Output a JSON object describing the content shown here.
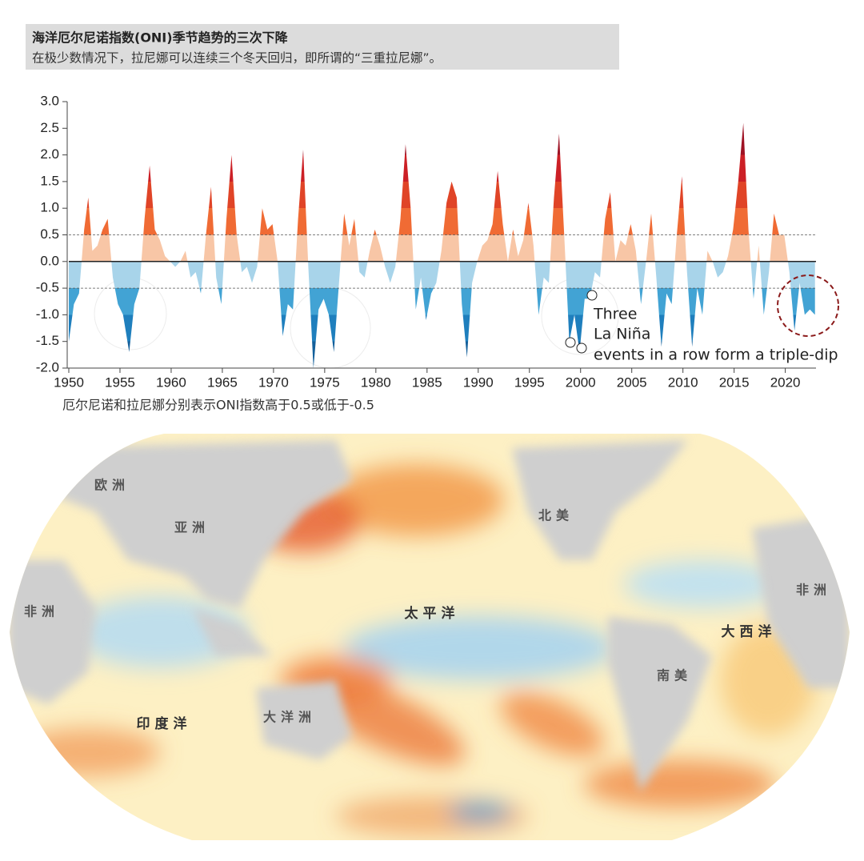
{
  "chart_data": {
    "type": "area",
    "title": "海洋厄尔尼诺指数(ONI)季节趋势的三次下降",
    "subtitle": "在极少数情况下，拉尼娜可以连续三个冬天回归，即所谓的“三重拉尼娜”。",
    "x_axis_label": "厄尔尼诺和拉尼娜分别表示ONI指数高于0.5或低于-0.5",
    "x": [
      1950.0,
      1950.5,
      1951.0,
      1951.5,
      1951.9,
      1952.3,
      1952.8,
      1953.3,
      1953.8,
      1954.3,
      1954.8,
      1955.3,
      1955.9,
      1956.4,
      1956.9,
      1957.4,
      1957.9,
      1958.4,
      1958.9,
      1959.4,
      1959.9,
      1960.4,
      1960.9,
      1961.4,
      1961.9,
      1962.4,
      1962.9,
      1963.4,
      1963.9,
      1964.4,
      1964.9,
      1965.4,
      1965.9,
      1966.4,
      1966.9,
      1967.4,
      1967.9,
      1968.4,
      1968.9,
      1969.4,
      1969.9,
      1970.4,
      1970.9,
      1971.4,
      1971.9,
      1972.4,
      1972.9,
      1973.4,
      1973.9,
      1974.4,
      1974.9,
      1975.4,
      1975.9,
      1976.4,
      1976.9,
      1977.4,
      1977.9,
      1978.4,
      1978.9,
      1979.4,
      1979.9,
      1980.4,
      1980.9,
      1981.4,
      1981.9,
      1982.4,
      1982.9,
      1983.4,
      1983.9,
      1984.4,
      1984.9,
      1985.4,
      1985.9,
      1986.4,
      1986.9,
      1987.4,
      1987.9,
      1988.4,
      1988.9,
      1989.4,
      1989.9,
      1990.4,
      1990.9,
      1991.4,
      1991.9,
      1992.4,
      1992.9,
      1993.4,
      1993.9,
      1994.4,
      1994.9,
      1995.4,
      1995.9,
      1996.4,
      1996.9,
      1997.4,
      1997.9,
      1998.4,
      1998.9,
      1999.4,
      1999.9,
      2000.4,
      2000.9,
      2001.4,
      2001.9,
      2002.4,
      2002.9,
      2003.4,
      2003.9,
      2004.4,
      2004.9,
      2005.4,
      2005.9,
      2006.4,
      2006.9,
      2007.4,
      2007.9,
      2008.4,
      2008.9,
      2009.4,
      2009.9,
      2010.4,
      2010.9,
      2011.4,
      2011.9,
      2012.4,
      2012.9,
      2013.4,
      2013.9,
      2014.4,
      2014.9,
      2015.4,
      2015.9,
      2016.4,
      2016.9,
      2017.4,
      2017.9,
      2018.4,
      2018.9,
      2019.4,
      2019.9,
      2020.4,
      2020.9,
      2021.4,
      2021.9,
      2022.4,
      2022.9
    ],
    "values": [
      -1.5,
      -0.8,
      -0.6,
      0.6,
      1.2,
      0.2,
      0.3,
      0.6,
      0.8,
      -0.3,
      -0.8,
      -1.0,
      -1.7,
      -0.8,
      -0.5,
      0.8,
      1.8,
      0.6,
      0.4,
      0.1,
      0.0,
      -0.1,
      0.0,
      0.2,
      -0.3,
      -0.2,
      -0.6,
      0.5,
      1.4,
      -0.3,
      -0.8,
      0.8,
      2.0,
      0.5,
      -0.2,
      -0.1,
      -0.4,
      -0.1,
      1.0,
      0.6,
      0.7,
      0.0,
      -1.4,
      -0.8,
      -0.9,
      0.8,
      2.1,
      -0.1,
      -2.0,
      -0.9,
      -0.7,
      -1.0,
      -1.7,
      -0.4,
      0.9,
      0.3,
      0.8,
      -0.2,
      -0.3,
      0.2,
      0.6,
      0.3,
      -0.1,
      -0.4,
      -0.1,
      0.8,
      2.2,
      1.0,
      -0.9,
      -0.3,
      -1.1,
      -0.6,
      -0.4,
      0.2,
      1.1,
      1.5,
      1.2,
      -0.8,
      -1.8,
      -0.4,
      0.0,
      0.3,
      0.4,
      0.7,
      1.7,
      0.7,
      0.0,
      0.6,
      0.1,
      0.4,
      1.1,
      0.3,
      -1.0,
      -0.3,
      -0.4,
      1.2,
      2.4,
      0.5,
      -1.5,
      -1.0,
      -1.7,
      -0.7,
      -0.7,
      -0.2,
      -0.3,
      0.8,
      1.3,
      0.0,
      0.4,
      0.3,
      0.7,
      0.2,
      -0.8,
      0.0,
      0.9,
      -0.3,
      -1.6,
      -0.6,
      -0.8,
      0.5,
      1.6,
      -0.2,
      -1.6,
      -0.5,
      -1.0,
      0.2,
      0.0,
      -0.3,
      -0.2,
      0.1,
      0.6,
      1.5,
      2.6,
      0.6,
      -0.7,
      0.3,
      -1.0,
      -0.2,
      0.9,
      0.5,
      0.5,
      -0.2,
      -1.3,
      -0.4,
      -1.0,
      -0.9,
      -1.0
    ],
    "xlim": [
      1950,
      2023
    ],
    "ylim": [
      -2,
      3
    ],
    "xticks": [
      1950,
      1955,
      1960,
      1965,
      1970,
      1975,
      1980,
      1985,
      1990,
      1995,
      2000,
      2005,
      2010,
      2015,
      2020
    ],
    "yticks": [
      {
        "value": 3,
        "label": "3.0"
      },
      2.5,
      {
        "value": 2,
        "label": "2.0"
      },
      1.5,
      {
        "value": 1,
        "label": "1.0"
      },
      0.5,
      {
        "value": 0,
        "label": "0.0"
      },
      -0.5,
      {
        "value": -1,
        "label": "-1.0"
      },
      -1.5,
      {
        "value": -2,
        "label": "-2.0"
      }
    ],
    "reference_lines": [
      0.5,
      -0.5
    ],
    "color_scale": {
      "thresholds": [
        -1.5,
        -1,
        -0.5,
        0,
        0.5,
        1,
        1.5,
        2
      ],
      "colors": [
        "#14609b",
        "#1f7fbd",
        "#42a3d4",
        "#a8d4ea",
        "#f8c6a6",
        "#f06b34",
        "#e04427",
        "#cc2026",
        "#9e1224"
      ]
    },
    "annotations": [
      "Three",
      "La Niña",
      "events in a row form a triple-dip"
    ]
  },
  "map": {
    "labels": [
      "欧洲",
      "亚洲",
      "北美",
      "非洲",
      "非洲",
      "太平洋",
      "大西洋",
      "南美",
      "印度洋",
      "大洋洲"
    ]
  }
}
